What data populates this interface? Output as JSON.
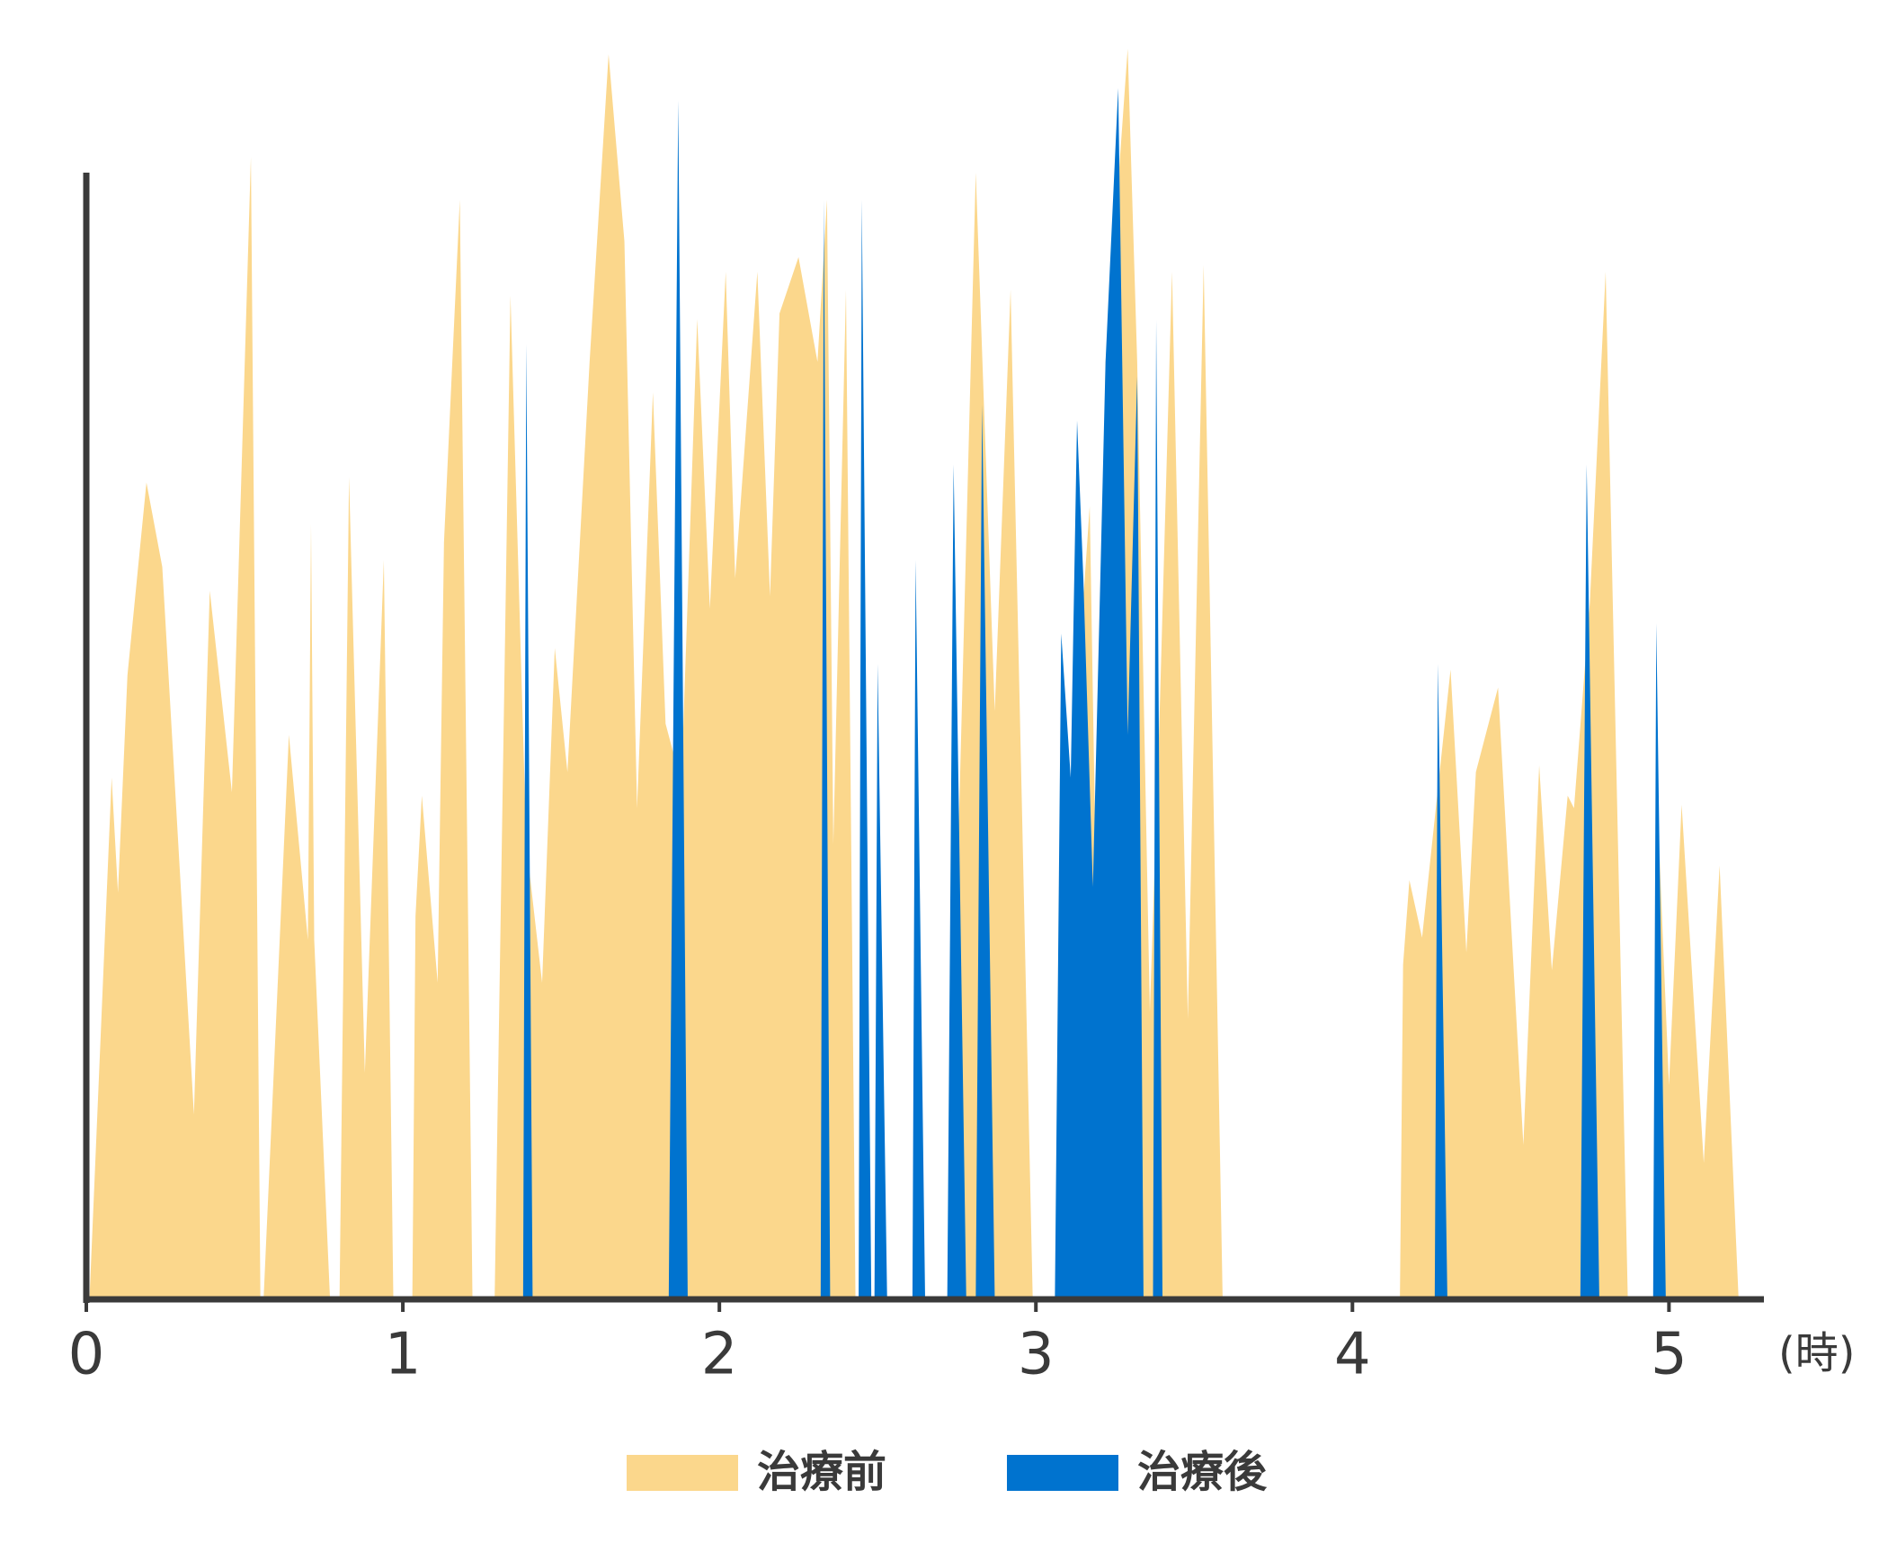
{
  "chart_data": {
    "type": "area",
    "x_label": "(時)",
    "xlim": [
      0,
      5.3
    ],
    "xticks": [
      0,
      1,
      2,
      3,
      4,
      5
    ],
    "ylim": [
      0,
      100
    ],
    "grid": false,
    "legend": "bottom",
    "series": [
      {
        "name": "治療前",
        "color": "#fbd78c",
        "x": [
          0.01,
          0.08,
          0.1,
          0.13,
          0.19,
          0.24,
          0.34,
          0.39,
          0.46,
          0.52,
          0.55,
          0.56,
          0.64,
          0.7,
          0.71,
          0.72,
          0.77,
          0.8,
          0.83,
          0.88,
          0.94,
          0.97,
          1.03,
          1.04,
          1.06,
          1.11,
          1.13,
          1.18,
          1.22,
          1.29,
          1.34,
          1.39,
          1.44,
          1.48,
          1.52,
          1.59,
          1.65,
          1.7,
          1.74,
          1.79,
          1.83,
          1.88,
          1.93,
          1.97,
          2.02,
          2.05,
          2.12,
          2.16,
          2.19,
          2.25,
          2.31,
          2.34,
          2.36,
          2.4,
          2.43,
          2.73,
          2.75,
          2.81,
          2.87,
          2.92,
          2.99,
          3.06,
          3.11,
          3.17,
          3.19,
          3.22,
          3.29,
          3.32,
          3.36,
          3.39,
          3.43,
          3.48,
          3.53,
          3.59,
          4.15,
          4.16,
          4.18,
          4.22,
          4.31,
          4.36,
          4.39,
          4.46,
          4.54,
          4.59,
          4.63,
          4.68,
          4.7,
          4.75,
          4.8,
          4.87,
          4.96,
          4.97,
          5.0,
          5.04,
          5.11,
          5.16,
          5.22
        ],
        "values": [
          0,
          46.3,
          36.1,
          55.4,
          72.5,
          65.0,
          16.4,
          62.9,
          45.0,
          101.4,
          0,
          0,
          50.1,
          31.9,
          68.8,
          31.9,
          0,
          0,
          73.0,
          20.1,
          65.6,
          0,
          0,
          34.0,
          44.7,
          28.1,
          67.2,
          97.6,
          0,
          0,
          89.1,
          40.4,
          28.1,
          57.8,
          46.8,
          83.2,
          110.5,
          93.9,
          43.6,
          80.5,
          51.1,
          45.8,
          87.0,
          61.3,
          91.2,
          64.0,
          91.2,
          62.4,
          87.5,
          92.5,
          83.2,
          97.6,
          40.4,
          89.6,
          0,
          0,
          35.1,
          100,
          52.2,
          89.6,
          0,
          0,
          45.8,
          70.4,
          36.7,
          83.2,
          111.0,
          83.2,
          25.5,
          51.1,
          91.2,
          24.9,
          91.8,
          0,
          0,
          29.7,
          37.2,
          32.1,
          55.9,
          30.8,
          46.8,
          54.3,
          13.7,
          47.4,
          29.2,
          44.7,
          43.6,
          61.8,
          91.2,
          0,
          0,
          39.4,
          19.0,
          43.9,
          12.1,
          38.5,
          0
        ]
      },
      {
        "name": "治療後",
        "color": "#0073cf",
        "x": [
          1.38,
          1.39,
          1.41,
          1.84,
          1.87,
          1.9,
          2.32,
          2.33,
          2.35,
          2.44,
          2.45,
          2.48,
          2.49,
          2.5,
          2.53,
          2.61,
          2.62,
          2.65,
          2.72,
          2.74,
          2.78,
          2.81,
          2.83,
          2.87,
          3.06,
          3.08,
          3.11,
          3.13,
          3.15,
          3.18,
          3.22,
          3.26,
          3.29,
          3.32,
          3.34,
          3.37,
          3.38,
          3.4,
          4.26,
          4.27,
          4.3,
          4.72,
          4.74,
          4.78,
          4.95,
          4.96,
          4.99
        ],
        "values": [
          0,
          84.8,
          0,
          0,
          106.4,
          0,
          0,
          97.6,
          0,
          0,
          97.6,
          0,
          0,
          56.4,
          0,
          0,
          65.6,
          0,
          0,
          74.1,
          0,
          0,
          79.4,
          0,
          0,
          59.1,
          46.3,
          78.0,
          63.9,
          36.6,
          83.2,
          107.5,
          50.1,
          81.9,
          0,
          0,
          86.9,
          0,
          0,
          56.4,
          0,
          0,
          74.1,
          0,
          0,
          60.0,
          0
        ]
      }
    ]
  }
}
